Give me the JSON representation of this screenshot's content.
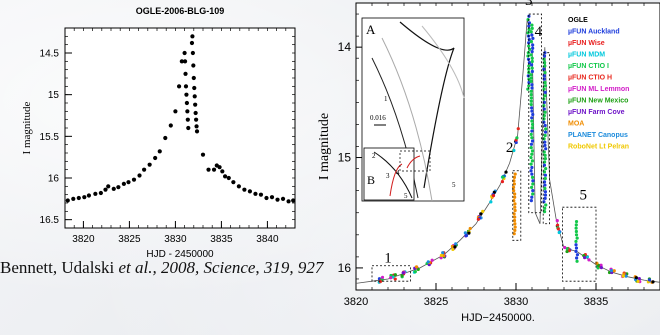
{
  "citation": {
    "authors": "Bennett, Udalski",
    "etal_year": "et al., 2008, Science",
    "volume_pages": "319, 927"
  },
  "chart_data": [
    {
      "type": "scatter",
      "title": "OGLE-2006-BLG-109",
      "xlabel": "HJD - 2450000",
      "ylabel": "I magnitude",
      "xlim": [
        3818,
        3843
      ],
      "ylim": [
        16.6,
        14.2
      ],
      "y_inverted": true,
      "x_ticks": [
        "3820",
        "3825",
        "3830",
        "3835",
        "3840"
      ],
      "x_tick_values": [
        3820,
        3825,
        3830,
        3835,
        3840
      ],
      "y_ticks": [
        "14.5",
        "15",
        "15.5",
        "16",
        "16.5"
      ],
      "y_tick_values": [
        14.5,
        15,
        15.5,
        16,
        16.5
      ],
      "grid": false,
      "color": "#000000",
      "points": [
        [
          3818.3,
          16.27
        ],
        [
          3818.9,
          16.25
        ],
        [
          3819.5,
          16.24
        ],
        [
          3820.1,
          16.23
        ],
        [
          3820.6,
          16.21
        ],
        [
          3821.3,
          16.19
        ],
        [
          3821.9,
          16.18
        ],
        [
          3822.4,
          16.14
        ],
        [
          3822.7,
          16.1
        ],
        [
          3823.3,
          16.13
        ],
        [
          3823.8,
          16.11
        ],
        [
          3824.4,
          16.07
        ],
        [
          3824.9,
          16.05
        ],
        [
          3825.5,
          16.02
        ],
        [
          3826.1,
          15.97
        ],
        [
          3826.6,
          15.9
        ],
        [
          3827.2,
          15.84
        ],
        [
          3827.8,
          15.76
        ],
        [
          3828.3,
          15.68
        ],
        [
          3828.9,
          15.52
        ],
        [
          3829.5,
          15.37
        ],
        [
          3830.0,
          15.2
        ],
        [
          3830.4,
          14.9
        ],
        [
          3830.7,
          14.6
        ],
        [
          3831.0,
          14.5
        ],
        [
          3831.05,
          14.6
        ],
        [
          3831.1,
          14.75
        ],
        [
          3831.15,
          14.9
        ],
        [
          3831.2,
          15.0
        ],
        [
          3831.25,
          15.1
        ],
        [
          3831.3,
          15.2
        ],
        [
          3831.35,
          15.3
        ],
        [
          3831.4,
          15.4
        ],
        [
          3831.8,
          14.38
        ],
        [
          3831.85,
          14.3
        ],
        [
          3831.9,
          14.5
        ],
        [
          3831.95,
          14.65
        ],
        [
          3832.0,
          14.8
        ],
        [
          3832.05,
          14.92
        ],
        [
          3832.1,
          15.02
        ],
        [
          3832.15,
          15.12
        ],
        [
          3832.2,
          15.22
        ],
        [
          3832.25,
          15.3
        ],
        [
          3832.3,
          15.38
        ],
        [
          3832.35,
          15.44
        ],
        [
          3833.0,
          15.72
        ],
        [
          3833.6,
          15.9
        ],
        [
          3834.2,
          15.9
        ],
        [
          3834.5,
          15.85
        ],
        [
          3834.8,
          15.87
        ],
        [
          3835.1,
          15.92
        ],
        [
          3835.4,
          15.98
        ],
        [
          3835.8,
          16.0
        ],
        [
          3836.3,
          16.05
        ],
        [
          3836.9,
          16.1
        ],
        [
          3837.5,
          16.14
        ],
        [
          3838.1,
          16.16
        ],
        [
          3838.7,
          16.19
        ],
        [
          3839.3,
          16.2
        ],
        [
          3839.9,
          16.24
        ],
        [
          3840.5,
          16.23
        ],
        [
          3841.1,
          16.26
        ],
        [
          3841.7,
          16.25
        ],
        [
          3842.3,
          16.28
        ],
        [
          3842.8,
          16.27
        ]
      ]
    },
    {
      "type": "line",
      "title": "",
      "xlabel": "HJD−2450000.",
      "ylabel": "I magnitude",
      "xlim": [
        3820,
        3839
      ],
      "ylim": [
        16.2,
        13.6
      ],
      "y_inverted": true,
      "x_ticks": [
        "3820",
        "3825",
        "3830",
        "3835"
      ],
      "x_tick_values": [
        3820,
        3825,
        3830,
        3835
      ],
      "y_ticks": [
        "14",
        "15",
        "16"
      ],
      "y_tick_values": [
        14,
        15,
        16
      ],
      "grid": false,
      "legend_position": "top-right",
      "legend": [
        {
          "name": "OGLE",
          "color": "#000000"
        },
        {
          "name": "µFUN Auckland",
          "color": "#1e3ddc"
        },
        {
          "name": "µFUN Wise",
          "color": "#e81e1e"
        },
        {
          "name": "µFUN MDM",
          "color": "#00c8dc"
        },
        {
          "name": "µFUN CTIO I",
          "color": "#12c84a"
        },
        {
          "name": "µFUN CTIO H",
          "color": "#e8281e"
        },
        {
          "name": "µFUN ML Lemmon",
          "color": "#d21ec8"
        },
        {
          "name": "µFUN New Mexico",
          "color": "#1ea014"
        },
        {
          "name": "µFUN Farm Cove",
          "color": "#6e14c8"
        },
        {
          "name": "MOA",
          "color": "#f08c00"
        },
        {
          "name": "PLANET Canopus",
          "color": "#1e8cdc"
        },
        {
          "name": "RoboNet Lt Pelran",
          "color": "#f0c800"
        }
      ],
      "annotations": [
        {
          "label": "1",
          "x": 3822.0,
          "y": 15.95
        },
        {
          "label": "2",
          "x": 3829.6,
          "y": 14.95
        },
        {
          "label": "3",
          "x": 3830.8,
          "y": 13.62
        },
        {
          "label": "4",
          "x": 3831.4,
          "y": 13.9
        },
        {
          "label": "5",
          "x": 3834.2,
          "y": 15.38
        }
      ],
      "highlight_boxes": [
        {
          "x": [
            3821.0,
            3823.4
          ],
          "y": [
            15.98,
            16.12
          ]
        },
        {
          "x": [
            3829.8,
            3830.3
          ],
          "y": [
            15.12,
            15.75
          ]
        },
        {
          "x": [
            3830.8,
            3831.6
          ],
          "y": [
            13.7,
            15.5
          ]
        },
        {
          "x": [
            3831.7,
            3832.1
          ],
          "y": [
            14.05,
            15.6
          ]
        },
        {
          "x": [
            3832.9,
            3835.0
          ],
          "y": [
            15.45,
            16.12
          ]
        }
      ],
      "model_curve": [
        [
          3820,
          16.14
        ],
        [
          3822,
          16.1
        ],
        [
          3824,
          16.0
        ],
        [
          3825.5,
          15.88
        ],
        [
          3826.5,
          15.75
        ],
        [
          3827.5,
          15.6
        ],
        [
          3828.3,
          15.42
        ],
        [
          3829.0,
          15.25
        ],
        [
          3829.6,
          15.05
        ],
        [
          3830.1,
          14.8
        ],
        [
          3830.4,
          14.3
        ],
        [
          3830.7,
          13.75
        ],
        [
          3831.0,
          13.9
        ],
        [
          3831.2,
          15.5
        ],
        [
          3831.5,
          15.6
        ],
        [
          3831.8,
          14.0
        ],
        [
          3832.1,
          15.2
        ],
        [
          3832.5,
          15.55
        ],
        [
          3833.0,
          15.82
        ],
        [
          3833.8,
          15.85
        ],
        [
          3834.3,
          15.9
        ],
        [
          3835.0,
          15.97
        ],
        [
          3836.0,
          16.04
        ],
        [
          3837.0,
          16.08
        ],
        [
          3838.0,
          16.11
        ],
        [
          3839,
          16.13
        ]
      ],
      "inset_A": {
        "label": "A",
        "scale_label": "0.016",
        "caustic_label": "1"
      },
      "inset_B": {
        "label": "B",
        "caustic_labels": [
          "2",
          "3",
          "4",
          "5"
        ]
      }
    }
  ]
}
